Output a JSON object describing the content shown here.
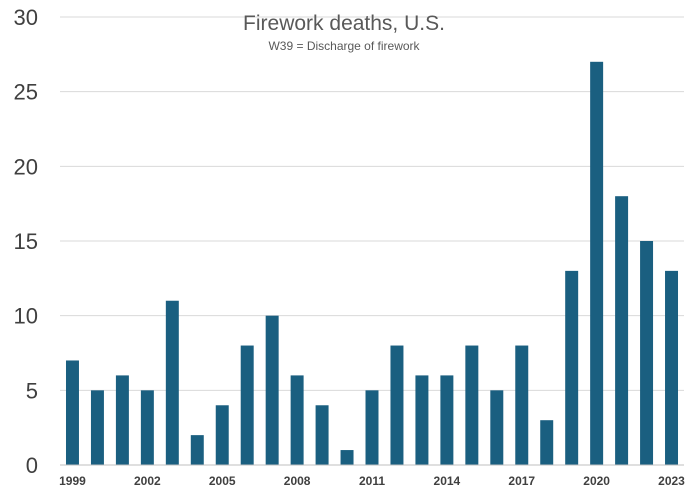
{
  "chart_data": {
    "type": "bar",
    "title": "Firework deaths, U.S.",
    "subtitle": "W39 = Discharge of firework",
    "xlabel": "",
    "ylabel": "",
    "ylim": [
      0,
      30
    ],
    "yticks": [
      0,
      5,
      10,
      15,
      20,
      25,
      30
    ],
    "grid": true,
    "legend": "none",
    "bar_color": "#1a5f80",
    "categories": [
      "1999",
      "2000",
      "2001",
      "2002",
      "2003",
      "2004",
      "2005",
      "2006",
      "2007",
      "2008",
      "2009",
      "2010",
      "2011",
      "2012",
      "2013",
      "2014",
      "2015",
      "2016",
      "2017",
      "2018",
      "2019",
      "2020",
      "2021",
      "2022",
      "2023"
    ],
    "category_labels": [
      "1999",
      "",
      "",
      "2002",
      "",
      "",
      "2005",
      "",
      "",
      "2008",
      "",
      "",
      "2011",
      "",
      "",
      "2014",
      "",
      "",
      "2017",
      "",
      "",
      "2020",
      "",
      "",
      "2023"
    ],
    "values": [
      7,
      5,
      6,
      5,
      11,
      2,
      4,
      8,
      10,
      6,
      4,
      1,
      5,
      8,
      6,
      6,
      8,
      5,
      8,
      3,
      13,
      27,
      18,
      15,
      13
    ]
  }
}
